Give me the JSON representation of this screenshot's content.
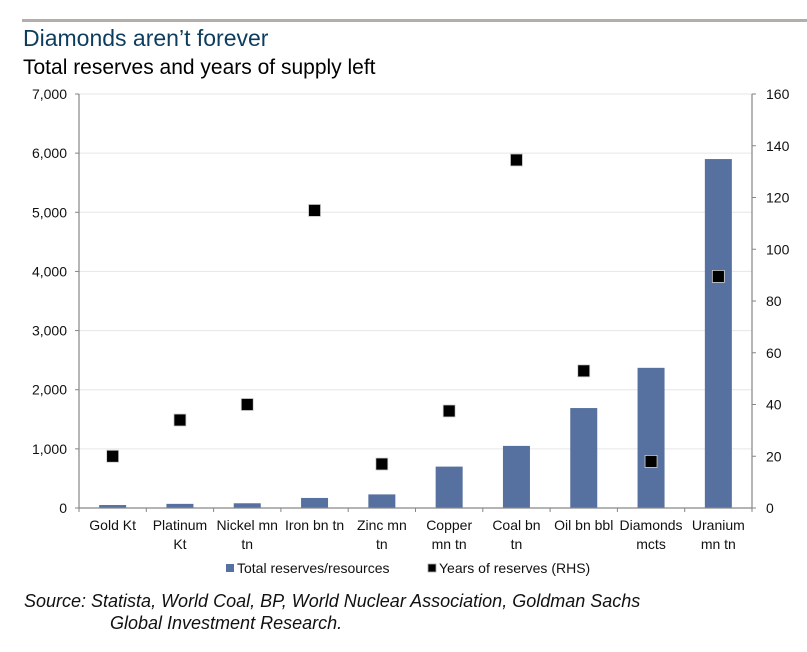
{
  "header": {
    "title": "Diamonds aren’t forever",
    "subtitle": "Total reserves and years of supply left"
  },
  "source": {
    "line1": "Source: Statista, World Coal, BP, World Nuclear Association, Goldman Sachs",
    "line2": "Global Investment Research."
  },
  "colors": {
    "bar": "#56719f",
    "marker": "#000000",
    "title": "#0d3d5e",
    "axis": "#868686",
    "grid": "#e6e6e6"
  },
  "chart_data": {
    "type": "bar",
    "title": "Diamonds aren’t forever",
    "subtitle": "Total reserves and years of supply left",
    "xlabel": "",
    "ylabel": "",
    "categories": [
      [
        "Gold Kt"
      ],
      [
        "Platinum",
        "Kt"
      ],
      [
        "Nickel mn",
        "tn"
      ],
      [
        "Iron bn tn"
      ],
      [
        "Zinc mn",
        "tn"
      ],
      [
        "Copper",
        "mn tn"
      ],
      [
        "Coal bn",
        "tn"
      ],
      [
        "Oil bn bbl"
      ],
      [
        "Diamonds",
        "mcts"
      ],
      [
        "Uranium",
        "mn tn"
      ]
    ],
    "series": [
      {
        "name": "Total reserves/resources",
        "type": "bar",
        "axis": "left",
        "values": [
          50,
          70,
          80,
          170,
          230,
          700,
          1050,
          1690,
          2370,
          5900
        ]
      },
      {
        "name": "Years of reserves (RHS)",
        "type": "scatter",
        "axis": "right",
        "values": [
          20,
          34,
          40,
          115,
          17,
          37.5,
          134.5,
          53,
          18,
          89.5
        ]
      }
    ],
    "left_axis": {
      "ylim": [
        0,
        7000
      ],
      "ticks": [
        0,
        1000,
        2000,
        3000,
        4000,
        5000,
        6000,
        7000
      ],
      "tick_labels": [
        "0",
        "1,000",
        "2,000",
        "3,000",
        "4,000",
        "5,000",
        "6,000",
        "7,000"
      ]
    },
    "right_axis": {
      "ylim": [
        0,
        160
      ],
      "ticks": [
        0,
        20,
        40,
        60,
        80,
        100,
        120,
        140,
        160
      ],
      "tick_labels": [
        "0",
        "20",
        "40",
        "60",
        "80",
        "100",
        "120",
        "140",
        "160"
      ]
    },
    "grid": true,
    "legend": {
      "placement": "bottom",
      "entries": [
        "Total reserves/resources",
        "Years of reserves (RHS)"
      ]
    }
  }
}
